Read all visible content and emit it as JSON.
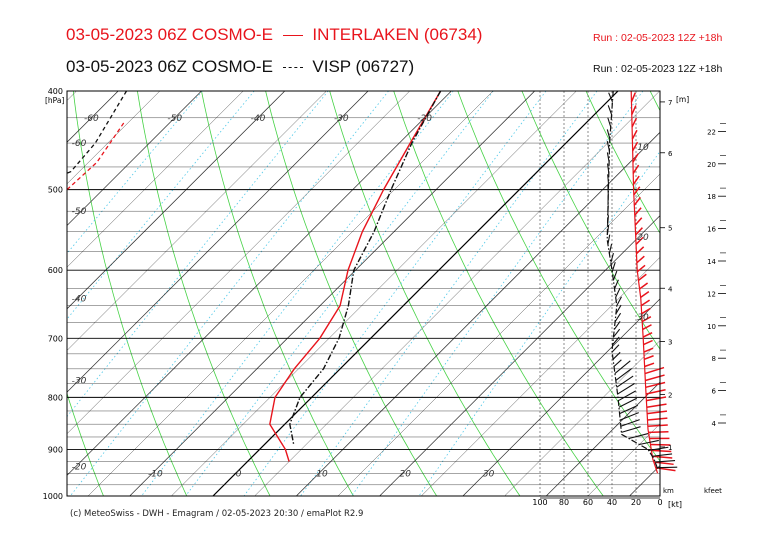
{
  "header": {
    "line1": {
      "left": "03-05-2023 06Z COSMO-E",
      "right": "INTERLAKEN (06734)",
      "run": "Run : 02-05-2023 12Z +18h",
      "line_color": "#e8141c"
    },
    "line2": {
      "left": "03-05-2023 06Z COSMO-E",
      "right": "VISP (06727)",
      "run": "Run : 02-05-2023 12Z +18h",
      "line_color": "#111111"
    }
  },
  "footer": "(c) MeteoSwiss - DWH - Emagram / 02-05-2023  20:30 / emaPlot R2.9",
  "chart_data": {
    "type": "line",
    "y_axis": {
      "label": "[hPa]",
      "range": [
        400,
        1000
      ],
      "ticks": [
        "400",
        "500",
        "600",
        "700",
        "800",
        "900",
        "1000"
      ]
    },
    "x_temperature_labels_bottom": [
      "-10",
      "0",
      "10",
      "20",
      "30"
    ],
    "temperature_labels_top": [
      "-60",
      "-50",
      "-40",
      "-30",
      "-20"
    ],
    "dry_adiabat_labels": [
      "-60",
      "-50",
      "-40",
      "-30",
      "-20"
    ],
    "height_km_axis": {
      "label": "[m]",
      "ticks": [
        "7",
        "6",
        "5",
        "4",
        "3",
        "2",
        "1"
      ],
      "bottom_label": "km"
    },
    "height_kfeet_axis": {
      "ticks": [
        "22",
        "20",
        "18",
        "16",
        "14",
        "12",
        "10",
        "8",
        "6",
        "4"
      ],
      "bottom_label": "kfeet"
    },
    "wind_axis": {
      "ticks": [
        "100",
        "80",
        "60",
        "40",
        "20",
        "0"
      ],
      "unit": "[kt]"
    },
    "wind_profile_labels": [
      "10",
      "20",
      "30"
    ],
    "series": [
      {
        "name": "INTERLAKEN (06734)",
        "color": "#e8141c",
        "style": "solid",
        "temperature": [
          [
            400,
            -21.3
          ],
          [
            450,
            -18.7
          ],
          [
            500,
            -16.3
          ],
          [
            550,
            -13.8
          ],
          [
            600,
            -10.9
          ],
          [
            650,
            -7.6
          ],
          [
            700,
            -6.1
          ],
          [
            750,
            -5.5
          ],
          [
            800,
            -4.4
          ],
          [
            850,
            -1.8
          ],
          [
            900,
            3.1
          ],
          [
            925,
            5.0
          ]
        ],
        "dewpoint": [
          [
            430,
            -55.5
          ],
          [
            470,
            -54.0
          ],
          [
            500,
            -54.3
          ],
          [
            530,
            -56.5
          ],
          [
            560,
            -58.0
          ],
          [
            600,
            -62.0
          ],
          [
            650,
            -67.0
          ],
          [
            700,
            -67.5
          ],
          [
            735,
            -63.0
          ],
          [
            760,
            -55.0
          ],
          [
            780,
            -54.0
          ],
          [
            800,
            -53.0
          ],
          [
            830,
            -50.5
          ],
          [
            860,
            -50.0
          ],
          [
            890,
            -50.0
          ],
          [
            920,
            -48.7
          ]
        ]
      },
      {
        "name": "VISP (06727)",
        "color": "#111111",
        "style": "dashdot",
        "temperature": [
          [
            400,
            -21.3
          ],
          [
            450,
            -18.5
          ],
          [
            500,
            -15.4
          ],
          [
            550,
            -12.4
          ],
          [
            600,
            -10.2
          ],
          [
            650,
            -6.6
          ],
          [
            700,
            -3.8
          ],
          [
            750,
            -2.0
          ],
          [
            800,
            -1.4
          ],
          [
            850,
            0.6
          ],
          [
            890,
            3.5
          ]
        ],
        "dewpoint": [
          [
            400,
            -59.0
          ],
          [
            450,
            -56.5
          ],
          [
            480,
            -56.0
          ],
          [
            520,
            -62.0
          ],
          [
            560,
            -68.0
          ],
          [
            600,
            -77.0
          ],
          [
            640,
            -74.5
          ],
          [
            680,
            -68.0
          ],
          [
            730,
            -63.0
          ],
          [
            760,
            -54.5
          ],
          [
            790,
            -51.0
          ],
          [
            820,
            -52.0
          ],
          [
            860,
            -55.5
          ],
          [
            900,
            -54.5
          ]
        ]
      }
    ],
    "wind_profiles": [
      {
        "name": "INTERLAKEN (06734)",
        "color": "#e8141c",
        "style": "solid",
        "speed_kt": [
          [
            400,
            24
          ],
          [
            500,
            22
          ],
          [
            600,
            19
          ],
          [
            640,
            16
          ],
          [
            700,
            14
          ],
          [
            780,
            12
          ],
          [
            860,
            10
          ],
          [
            920,
            6
          ],
          [
            950,
            2
          ]
        ]
      },
      {
        "name": "VISP (06727)",
        "color": "#111111",
        "style": "dashdot",
        "speed_kt": [
          [
            400,
            39
          ],
          [
            450,
            42
          ],
          [
            500,
            43
          ],
          [
            560,
            44
          ],
          [
            600,
            40
          ],
          [
            650,
            36
          ],
          [
            720,
            40
          ],
          [
            800,
            35
          ],
          [
            870,
            32
          ],
          [
            900,
            10
          ],
          [
            920,
            5
          ],
          [
            940,
            2
          ]
        ]
      }
    ]
  }
}
